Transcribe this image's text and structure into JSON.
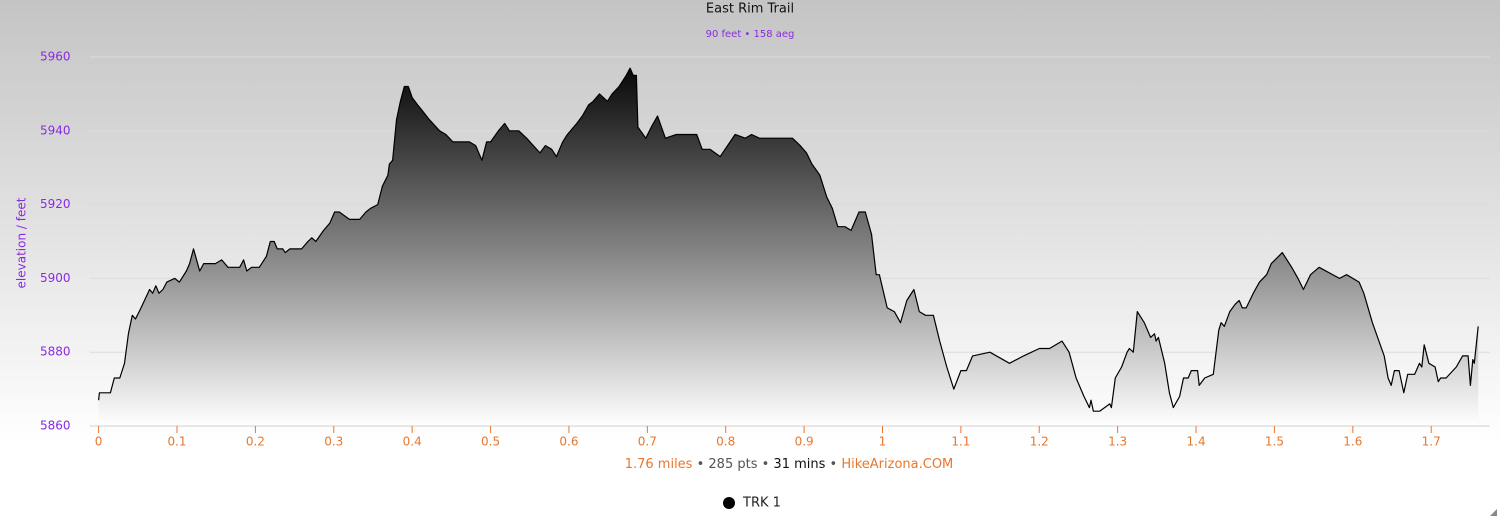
{
  "chart_data": {
    "type": "area",
    "title": "East Rim Trail",
    "subtitle": "90 feet • 158 aeg",
    "ylabel": "elevation / feet",
    "caption": [
      "1.76 miles",
      "285 pts",
      "31 mins",
      "HikeArizona.COM"
    ],
    "caption_separator": "•",
    "caption_colors": [
      "#e8772e",
      "#555555",
      "#111111",
      "#e8772e"
    ],
    "title_color": "#111111",
    "subtitle_color": "#8a2be2",
    "ytick_color": "#8a2be2",
    "xtick_color": "#e8772e",
    "grid": true,
    "legend": "bottom",
    "xlim": [
      -0.011,
      1.775
    ],
    "ylim": [
      5860,
      5960
    ],
    "xticks": [
      0,
      0.1,
      0.2,
      0.3,
      0.4,
      0.5,
      0.6,
      0.7,
      0.8,
      0.9,
      1,
      1.1,
      1.2,
      1.3,
      1.4,
      1.5,
      1.6,
      1.7
    ],
    "yticks": [
      5860,
      5880,
      5900,
      5920,
      5940,
      5960
    ],
    "x": [
      0,
      0.001,
      0.015,
      0.02,
      0.027,
      0.033,
      0.038,
      0.043,
      0.047,
      0.054,
      0.065,
      0.069,
      0.073,
      0.077,
      0.082,
      0.087,
      0.097,
      0.103,
      0.112,
      0.116,
      0.121,
      0.129,
      0.134,
      0.149,
      0.157,
      0.165,
      0.18,
      0.185,
      0.189,
      0.195,
      0.205,
      0.214,
      0.219,
      0.224,
      0.228,
      0.235,
      0.238,
      0.244,
      0.259,
      0.267,
      0.272,
      0.277,
      0.287,
      0.295,
      0.301,
      0.307,
      0.32,
      0.333,
      0.341,
      0.347,
      0.356,
      0.362,
      0.369,
      0.371,
      0.375,
      0.38,
      0.385,
      0.39,
      0.395,
      0.4,
      0.407,
      0.411,
      0.422,
      0.435,
      0.443,
      0.452,
      0.473,
      0.481,
      0.489,
      0.495,
      0.5,
      0.51,
      0.518,
      0.524,
      0.536,
      0.546,
      0.563,
      0.57,
      0.578,
      0.584,
      0.592,
      0.598,
      0.61,
      0.617,
      0.625,
      0.631,
      0.639,
      0.644,
      0.649,
      0.655,
      0.664,
      0.673,
      0.678,
      0.682,
      0.686,
      0.688,
      0.698,
      0.705,
      0.713,
      0.723,
      0.737,
      0.763,
      0.77,
      0.78,
      0.793,
      0.812,
      0.825,
      0.833,
      0.843,
      0.885,
      0.895,
      0.903,
      0.91,
      0.92,
      0.929,
      0.936,
      0.943,
      0.952,
      0.96,
      0.97,
      0.978,
      0.986,
      0.992,
      0.996,
      1.006,
      1.015,
      1.023,
      1.031,
      1.04,
      1.047,
      1.055,
      1.065,
      1.073,
      1.082,
      1.091,
      1.1,
      1.107,
      1.115,
      1.137,
      1.162,
      1.18,
      1.2,
      1.213,
      1.229,
      1.238,
      1.247,
      1.257,
      1.264,
      1.266,
      1.269,
      1.277,
      1.29,
      1.292,
      1.297,
      1.305,
      1.312,
      1.315,
      1.32,
      1.325,
      1.334,
      1.342,
      1.347,
      1.349,
      1.352,
      1.36,
      1.366,
      1.371,
      1.379,
      1.384,
      1.39,
      1.394,
      1.402,
      1.404,
      1.411,
      1.422,
      1.429,
      1.432,
      1.436,
      1.443,
      1.45,
      1.455,
      1.459,
      1.464,
      1.473,
      1.481,
      1.49,
      1.496,
      1.51,
      1.522,
      1.53,
      1.537,
      1.546,
      1.557,
      1.583,
      1.592,
      1.608,
      1.614,
      1.625,
      1.64,
      1.645,
      1.649,
      1.653,
      1.659,
      1.665,
      1.67,
      1.679,
      1.685,
      1.688,
      1.691,
      1.697,
      1.705,
      1.709,
      1.712,
      1.719,
      1.732,
      1.74,
      1.747,
      1.75,
      1.753,
      1.755,
      1.76
    ],
    "series": [
      {
        "name": "TRK 1",
        "color": "#000000",
        "values": [
          5867,
          5869,
          5869,
          5873,
          5873,
          5877,
          5885,
          5890,
          5889,
          5892,
          5897,
          5896,
          5898,
          5896,
          5897,
          5899,
          5900,
          5899,
          5902,
          5904,
          5908,
          5902,
          5904,
          5904,
          5905,
          5903,
          5903,
          5905,
          5902,
          5903,
          5903,
          5906,
          5910,
          5910,
          5908,
          5908,
          5907,
          5908,
          5908,
          5910,
          5911,
          5910,
          5913,
          5915,
          5918,
          5918,
          5916,
          5916,
          5918,
          5919,
          5920,
          5925,
          5928,
          5931,
          5932,
          5943,
          5948,
          5952,
          5952,
          5949,
          5947,
          5946,
          5943,
          5940,
          5939,
          5937,
          5937,
          5936,
          5932,
          5937,
          5937,
          5940,
          5942,
          5940,
          5940,
          5938,
          5934,
          5936,
          5935,
          5933,
          5937,
          5939,
          5942,
          5944,
          5947,
          5948,
          5950,
          5949,
          5948,
          5950,
          5952,
          5955,
          5957,
          5955,
          5955,
          5941,
          5938,
          5941,
          5944,
          5938,
          5939,
          5939,
          5935,
          5935,
          5933,
          5939,
          5938,
          5939,
          5938,
          5938,
          5936,
          5934,
          5931,
          5928,
          5922,
          5919,
          5914,
          5914,
          5913,
          5918,
          5918,
          5912,
          5901,
          5901,
          5892,
          5891,
          5888,
          5894,
          5897,
          5891,
          5890,
          5890,
          5883,
          5876,
          5870,
          5875,
          5875,
          5879,
          5880,
          5877,
          5879,
          5881,
          5881,
          5883,
          5880,
          5873,
          5868,
          5865,
          5867,
          5864,
          5864,
          5866,
          5865,
          5873,
          5876,
          5880,
          5881,
          5880,
          5891,
          5888,
          5884,
          5885,
          5883,
          5884,
          5877,
          5869,
          5865,
          5868,
          5873,
          5873,
          5875,
          5875,
          5871,
          5873,
          5874,
          5886,
          5888,
          5887,
          5891,
          5893,
          5894,
          5892,
          5892,
          5896,
          5899,
          5901,
          5904,
          5907,
          5903,
          5900,
          5897,
          5901,
          5903,
          5900,
          5901,
          5899,
          5896,
          5888,
          5879,
          5873,
          5871,
          5875,
          5875,
          5869,
          5874,
          5874,
          5877,
          5876,
          5882,
          5877,
          5876,
          5872,
          5873,
          5873,
          5876,
          5879,
          5879,
          5871,
          5878,
          5877,
          5887
        ]
      }
    ]
  }
}
